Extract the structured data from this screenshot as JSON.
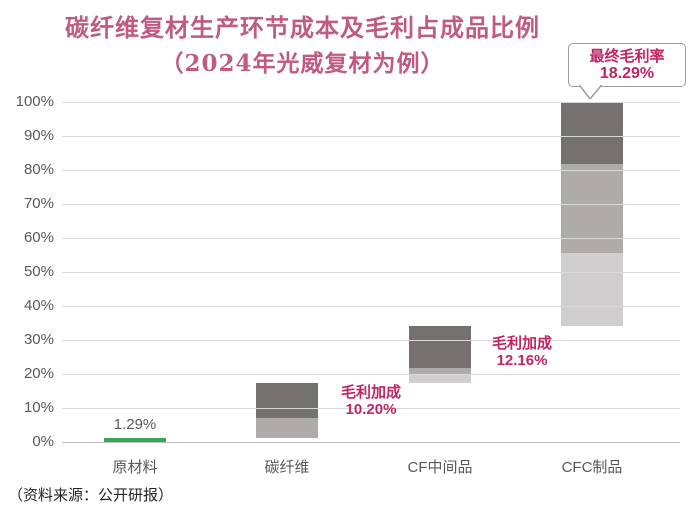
{
  "title": {
    "line1": "碳纤维复材生产环节成本及毛利占成品比例",
    "line2": "（2024年光威复材为例）"
  },
  "source_note": "（资料来源：公开研报）",
  "colors": {
    "title_pink": "#C05A82",
    "annotation_magenta": "#C02565",
    "bar_dark": "#767171",
    "bar_medium": "#AFABAB",
    "bar_light": "#D0CECE",
    "bar_green": "#3AA655",
    "axis_text": "#595959",
    "gridline": "#D9D9D9"
  },
  "chart_data": {
    "type": "bar",
    "subtype": "stacked_waterfall",
    "title": "碳纤维复材生产环节成本及毛利占成品比例（2024年光威复材为例）",
    "categories": [
      "原材料",
      "碳纤维",
      "CF中间品",
      "CFC制品"
    ],
    "y_axis": {
      "min": 0,
      "max": 100,
      "step": 10,
      "grid": true,
      "tick_labels": [
        "0%",
        "10%",
        "20%",
        "30%",
        "40%",
        "50%",
        "60%",
        "70%",
        "80%",
        "90%",
        "100%"
      ]
    },
    "bars": [
      {
        "category": "原材料",
        "segments": [
          {
            "from": 0,
            "to": 1.29,
            "color": "green"
          }
        ],
        "data_label": "1.29%"
      },
      {
        "category": "碳纤维",
        "segments": [
          {
            "from": 1.29,
            "to": 7.1,
            "color": "medium"
          },
          {
            "from": 7.1,
            "to": 17.3,
            "color": "dark"
          }
        ],
        "annotation": {
          "line1": "毛利加成",
          "line2": "10.20%"
        }
      },
      {
        "category": "CF中间品",
        "segments": [
          {
            "from": 17.3,
            "to": 20.0,
            "color": "light"
          },
          {
            "from": 20.0,
            "to": 21.84,
            "color": "medium"
          },
          {
            "from": 21.84,
            "to": 34.0,
            "color": "dark"
          }
        ],
        "annotation": {
          "line1": "毛利加成",
          "line2": "12.16%"
        }
      },
      {
        "category": "CFC制品",
        "segments": [
          {
            "from": 34.0,
            "to": 55.6,
            "color": "light"
          },
          {
            "from": 55.6,
            "to": 81.71,
            "color": "medium"
          },
          {
            "from": 81.71,
            "to": 100,
            "color": "dark"
          }
        ],
        "callout": {
          "line1": "最终毛利率",
          "line2": "18.29%"
        }
      }
    ],
    "legend_position": "none"
  }
}
